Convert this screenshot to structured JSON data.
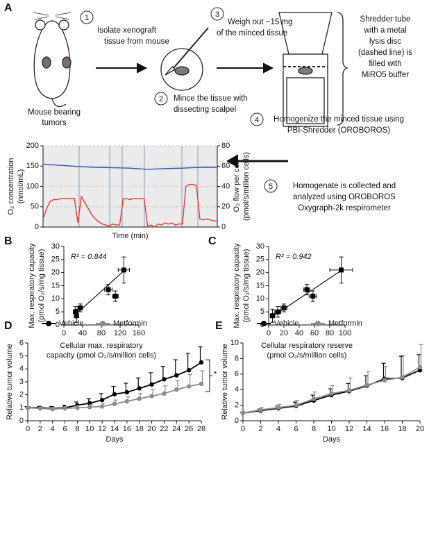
{
  "labels": [
    "A",
    "B",
    "C",
    "D",
    "E"
  ],
  "diagram": {
    "mouse_label": [
      "Mouse bearing",
      "tumors"
    ],
    "steps": [
      {
        "number": "1",
        "text": [
          "Isolate xenograft",
          "tissue from mouse"
        ]
      },
      {
        "number": "2",
        "text": [
          "Mince the tissue with",
          "dissecting scalpel"
        ]
      },
      {
        "number": "3",
        "text": [
          "Weigh out ~15 mg",
          "of the minced tissue"
        ]
      },
      {
        "number": "4",
        "text": [
          "Homogenize the minced tissue using",
          "PBI-Shredder (OROBOROS)"
        ]
      },
      {
        "number": "5",
        "text": [
          "Homogenate is collected and",
          "analyzed using OROBOROS",
          "Oxygraph-2k respirometer"
        ]
      }
    ],
    "shredder_note": [
      "Shredder tube",
      "with a metal",
      "lysis disc",
      "(dashed line) is",
      "filled with",
      "MiRO5 buffer"
    ]
  },
  "chart_data": [
    {
      "type": "trace",
      "ylabel": [
        "O₂ concentration",
        "(nmol/mL)"
      ],
      "y2label": [
        "O₂ flow per cell",
        "(pmol/s/million cells)"
      ],
      "xlabel": "Time (min)",
      "ylim": [
        0,
        200
      ],
      "yticks": [
        0,
        50,
        100,
        150,
        200
      ],
      "y2lim": [
        0,
        80
      ],
      "y2ticks": [
        0,
        20,
        40,
        60,
        80
      ],
      "grid": true,
      "series": [
        {
          "color": "#2b55b0",
          "values": [
            155,
            152,
            149,
            147,
            146,
            145,
            142,
            144,
            145,
            147,
            147
          ]
        },
        {
          "color": "#e8382a",
          "axis": "y2",
          "values": [
            8,
            18,
            25,
            27,
            27,
            28,
            28,
            28,
            28,
            28,
            4,
            30,
            24,
            18,
            12,
            8,
            5,
            3,
            2,
            1,
            3,
            2,
            2,
            28,
            28,
            27,
            28,
            28,
            28,
            28,
            1,
            2,
            0,
            3,
            2,
            4,
            3,
            4,
            2,
            3,
            3,
            40,
            42,
            42,
            41,
            8,
            7,
            8,
            7,
            6,
            6
          ]
        }
      ]
    },
    {
      "type": "scatter",
      "ylabel": [
        "Max. respiratory capacity",
        "(pmol O₂/s/mg tissue)"
      ],
      "xlabel": [
        "Cellular max. respiratory",
        "capacity (pmol O₂/s/million cells)"
      ],
      "annotation": "R² = 0.844",
      "color": "#000000",
      "x": [
        25,
        27,
        35,
        95,
        110,
        128
      ],
      "values": [
        5,
        3.5,
        6.5,
        13.5,
        11,
        21
      ],
      "xerr": [
        5,
        3,
        5,
        8,
        6,
        12
      ],
      "yerr": [
        2,
        2.5,
        1.5,
        2,
        2,
        5
      ],
      "fit": {
        "x": [
          25,
          130
        ],
        "values": [
          4,
          21
        ]
      },
      "xlim": [
        0,
        160
      ],
      "xticks": [
        0,
        40,
        80,
        120,
        160
      ],
      "ylim": [
        0,
        30
      ],
      "yticks": [
        0,
        5,
        10,
        15,
        20,
        25,
        30
      ]
    },
    {
      "type": "scatter",
      "ylabel": [
        "Max. respiratory capacity",
        "(pmol O₂/s/mg tissue)"
      ],
      "xlabel": [
        "Cellular respiratory reserve",
        "(pmol O₂/s/million cells)"
      ],
      "annotation": "R² = 0.942",
      "color": "#000000",
      "x": [
        5,
        12,
        20,
        50,
        58,
        95
      ],
      "values": [
        3.5,
        5,
        6.5,
        13.5,
        11,
        21
      ],
      "xerr": [
        3,
        4,
        4,
        4,
        5,
        15
      ],
      "yerr": [
        2.5,
        2,
        1.5,
        2,
        2,
        5
      ],
      "fit": {
        "x": [
          4,
          96
        ],
        "values": [
          3,
          21
        ]
      },
      "xlim": [
        0,
        100
      ],
      "xticks": [
        0,
        20,
        40,
        60,
        80,
        100
      ],
      "ylim": [
        0,
        30
      ],
      "yticks": [
        0,
        5,
        10,
        15,
        20,
        25,
        30
      ]
    },
    {
      "type": "errline",
      "ylabel": "Relative tumor volume",
      "xlabel": "Days",
      "annotation": "*",
      "x": [
        0,
        2,
        4,
        6,
        8,
        10,
        12,
        14,
        16,
        18,
        20,
        22,
        24,
        26,
        28
      ],
      "series": [
        {
          "name": "Vehicle",
          "color": "#000000",
          "values": [
            1.0,
            1.0,
            0.95,
            1.0,
            1.2,
            1.35,
            1.6,
            2.05,
            2.2,
            2.5,
            2.8,
            3.2,
            3.5,
            3.9,
            4.5
          ],
          "errors": [
            0.1,
            0.1,
            0.15,
            0.2,
            0.25,
            0.35,
            0.5,
            0.6,
            0.7,
            0.8,
            0.9,
            1.0,
            1.2,
            1.3,
            1.2
          ]
        },
        {
          "name": "Metformin",
          "color": "#8c8c8c",
          "values": [
            1.0,
            0.95,
            0.9,
            0.95,
            1.0,
            1.05,
            1.1,
            1.3,
            1.5,
            1.7,
            1.9,
            2.1,
            2.4,
            2.65,
            2.85
          ],
          "errors": [
            0.1,
            0.1,
            0.1,
            0.15,
            0.2,
            0.2,
            0.25,
            0.3,
            0.35,
            0.4,
            0.5,
            0.6,
            0.7,
            0.9,
            1.0
          ]
        }
      ],
      "xlim": [
        0,
        28
      ],
      "xticks": [
        0,
        2,
        4,
        6,
        8,
        10,
        12,
        14,
        16,
        18,
        20,
        22,
        24,
        26,
        28
      ],
      "ylim": [
        0,
        6
      ],
      "yticks": [
        0,
        1,
        2,
        3,
        4,
        5,
        6
      ]
    },
    {
      "type": "errline",
      "ylabel": "Relative tumor volume",
      "xlabel": "Days",
      "x": [
        0,
        2,
        4,
        6,
        8,
        10,
        12,
        14,
        16,
        18,
        20
      ],
      "series": [
        {
          "name": "Vehicle",
          "color": "#000000",
          "values": [
            1.0,
            1.3,
            1.6,
            1.9,
            2.6,
            3.3,
            3.8,
            4.5,
            5.4,
            5.5,
            6.5
          ],
          "errors": [
            0.1,
            0.2,
            0.3,
            0.5,
            0.7,
            0.8,
            1.0,
            1.3,
            2.0,
            2.8,
            2.0
          ]
        },
        {
          "name": "Metformin",
          "color": "#8c8c8c",
          "values": [
            1.0,
            1.4,
            1.7,
            2.0,
            2.8,
            3.5,
            3.9,
            4.6,
            5.2,
            5.6,
            6.9
          ],
          "errors": [
            0.1,
            0.3,
            0.4,
            0.6,
            0.9,
            1.0,
            1.6,
            1.7,
            1.8,
            2.8,
            2.9
          ]
        }
      ],
      "xlim": [
        0,
        20
      ],
      "xticks": [
        0,
        2,
        4,
        6,
        8,
        10,
        12,
        14,
        16,
        18,
        20
      ],
      "ylim": [
        0,
        10
      ],
      "yticks": [
        0,
        2,
        4,
        6,
        8,
        10
      ]
    }
  ]
}
